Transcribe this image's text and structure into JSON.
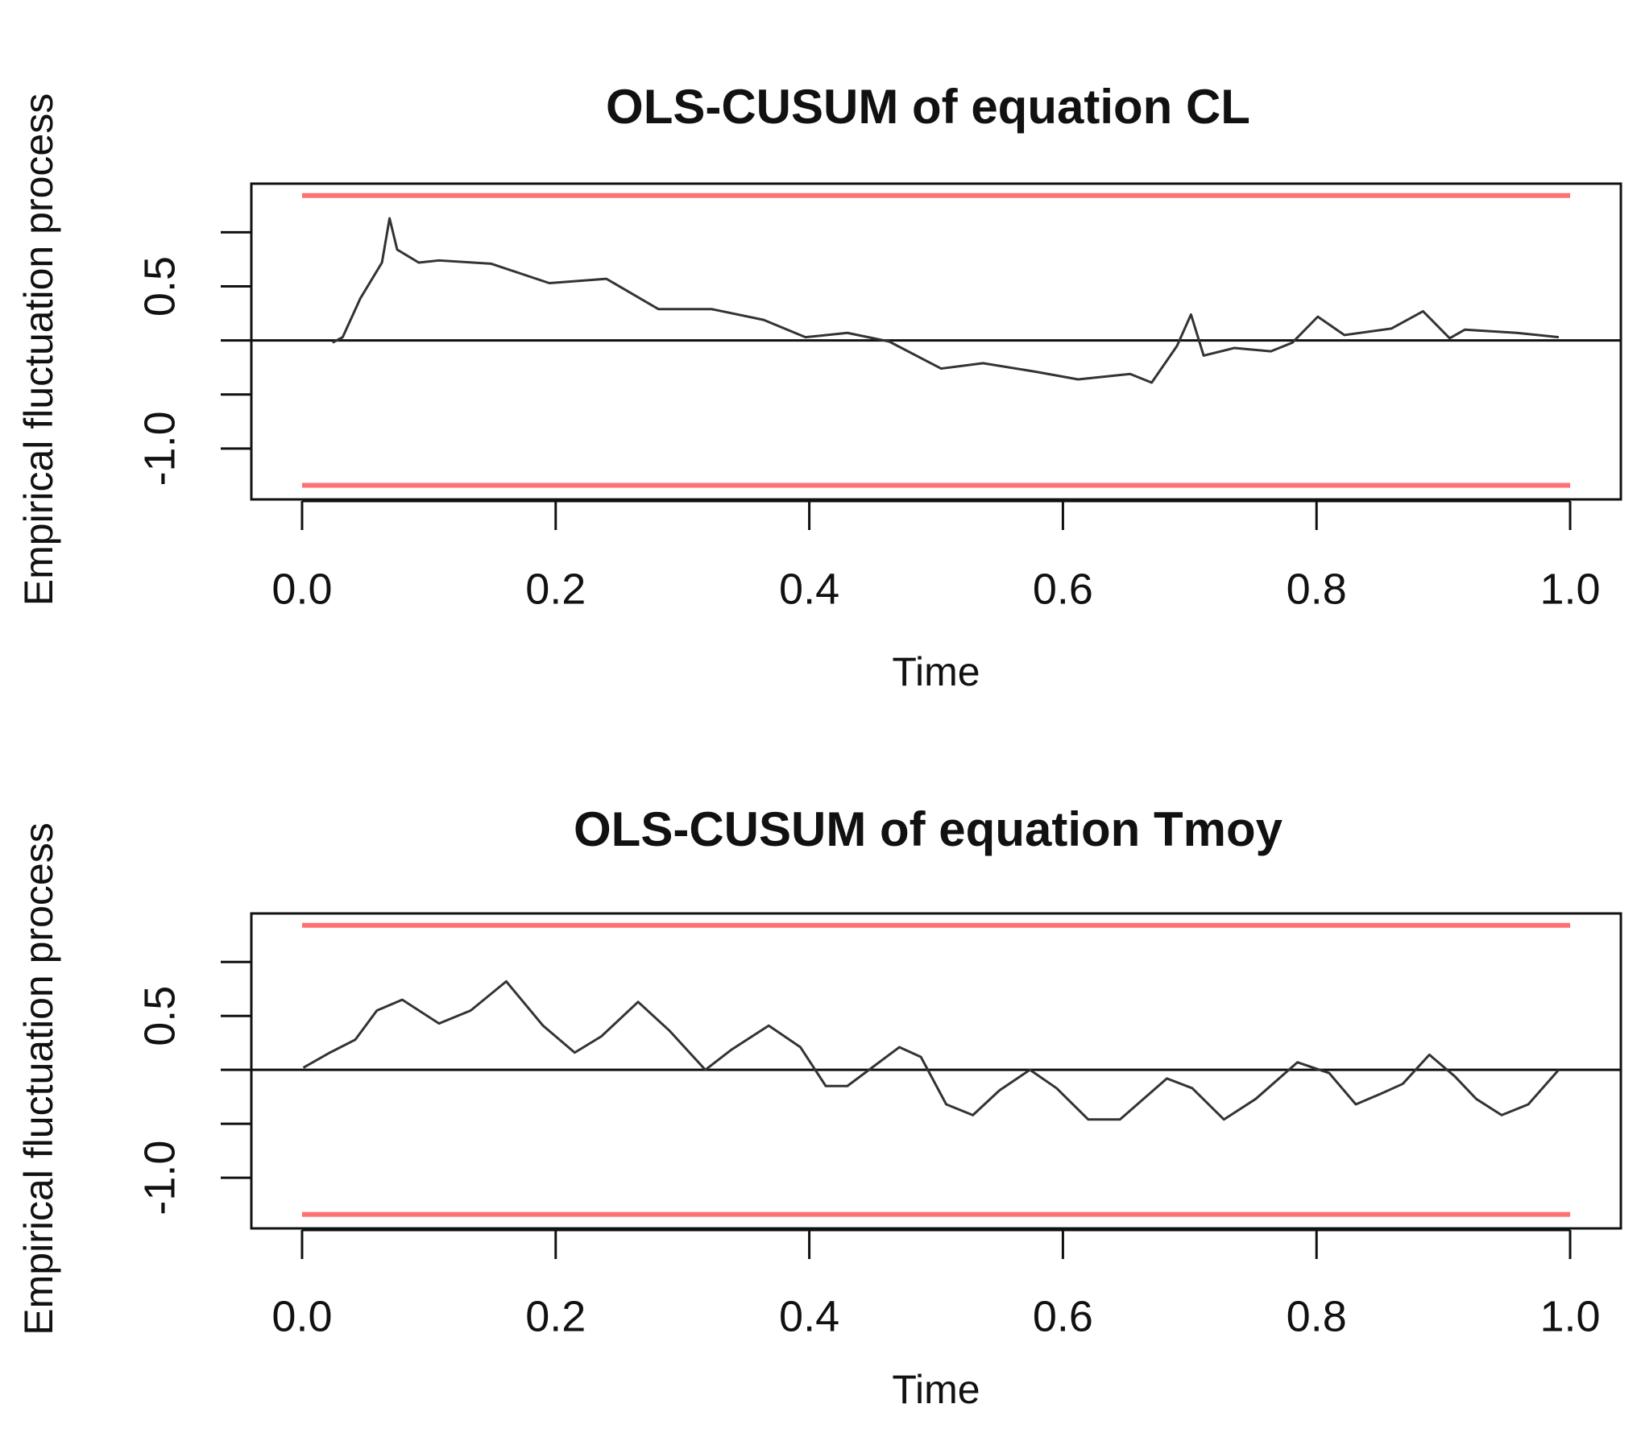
{
  "chart_data": [
    {
      "type": "line",
      "title": "OLS-CUSUM of equation CL",
      "xlabel": "Time",
      "ylabel": "Empirical fluctuation process",
      "xlim": [
        -0.04,
        1.04
      ],
      "ylim": [
        -1.47,
        1.45
      ],
      "xticks": [
        {
          "value": 0,
          "label": "0.0"
        },
        0.2,
        0.4,
        0.6,
        0.8,
        {
          "value": 1,
          "label": "1.0"
        }
      ],
      "yticks": [
        {
          "value": -1,
          "label": "-1.0"
        },
        {
          "value": -0.5,
          "label": null
        },
        {
          "value": 0,
          "label": null
        },
        0.5,
        {
          "value": 1,
          "label": null
        }
      ],
      "hline": 0,
      "boundaries": [
        1.34,
        -1.34
      ],
      "boundary_color": "#ff7070",
      "x": [
        0.024,
        0.032,
        0.046,
        0.063,
        0.069,
        0.075,
        0.092,
        0.108,
        0.149,
        0.195,
        0.24,
        0.281,
        0.323,
        0.364,
        0.397,
        0.43,
        0.463,
        0.504,
        0.537,
        0.579,
        0.612,
        0.653,
        0.67,
        0.69,
        0.701,
        0.711,
        0.735,
        0.764,
        0.781,
        0.801,
        0.822,
        0.859,
        0.884,
        0.905,
        0.917,
        0.958,
        0.991
      ],
      "series": [
        {
          "color": "#333333",
          "values": [
            -0.02,
            0.03,
            0.39,
            0.72,
            1.13,
            0.84,
            0.72,
            0.74,
            0.71,
            0.53,
            0.57,
            0.29,
            0.29,
            0.19,
            0.03,
            0.07,
            -0.01,
            -0.26,
            -0.21,
            -0.29,
            -0.36,
            -0.31,
            -0.39,
            -0.05,
            0.24,
            -0.14,
            -0.07,
            -0.1,
            -0.02,
            0.22,
            0.05,
            0.11,
            0.27,
            0.02,
            0.1,
            0.07,
            0.03
          ]
        }
      ]
    },
    {
      "type": "line",
      "title": "OLS-CUSUM of equation Tmoy",
      "xlabel": "Time",
      "ylabel": "Empirical fluctuation process",
      "xlim": [
        -0.04,
        1.04
      ],
      "ylim": [
        -1.47,
        1.45
      ],
      "xticks": [
        {
          "value": 0,
          "label": "0.0"
        },
        0.2,
        0.4,
        0.6,
        0.8,
        {
          "value": 1,
          "label": "1.0"
        }
      ],
      "yticks": [
        {
          "value": -1,
          "label": "-1.0"
        },
        {
          "value": -0.5,
          "label": null
        },
        {
          "value": 0,
          "label": null
        },
        0.5,
        {
          "value": 1,
          "label": null
        }
      ],
      "hline": 0,
      "boundaries": [
        1.34,
        -1.34
      ],
      "boundary_color": "#ff7070",
      "x": [
        0.001,
        0.022,
        0.042,
        0.059,
        0.079,
        0.108,
        0.133,
        0.161,
        0.19,
        0.215,
        0.236,
        0.265,
        0.29,
        0.318,
        0.339,
        0.368,
        0.393,
        0.413,
        0.43,
        0.471,
        0.488,
        0.508,
        0.529,
        0.55,
        0.574,
        0.595,
        0.62,
        0.645,
        0.682,
        0.702,
        0.727,
        0.752,
        0.785,
        0.81,
        0.831,
        0.851,
        0.868,
        0.889,
        0.909,
        0.926,
        0.946,
        0.967,
        0.991
      ],
      "series": [
        {
          "color": "#333333",
          "values": [
            0.02,
            0.16,
            0.28,
            0.55,
            0.65,
            0.43,
            0.55,
            0.82,
            0.41,
            0.16,
            0.31,
            0.63,
            0.36,
            0,
            0.19,
            0.41,
            0.21,
            -0.15,
            -0.15,
            0.21,
            0.12,
            -0.32,
            -0.42,
            -0.19,
            0,
            -0.17,
            -0.46,
            -0.46,
            -0.08,
            -0.17,
            -0.46,
            -0.27,
            0.07,
            -0.03,
            -0.32,
            -0.22,
            -0.13,
            0.14,
            -0.06,
            -0.27,
            -0.42,
            -0.32,
            0
          ]
        }
      ]
    }
  ]
}
